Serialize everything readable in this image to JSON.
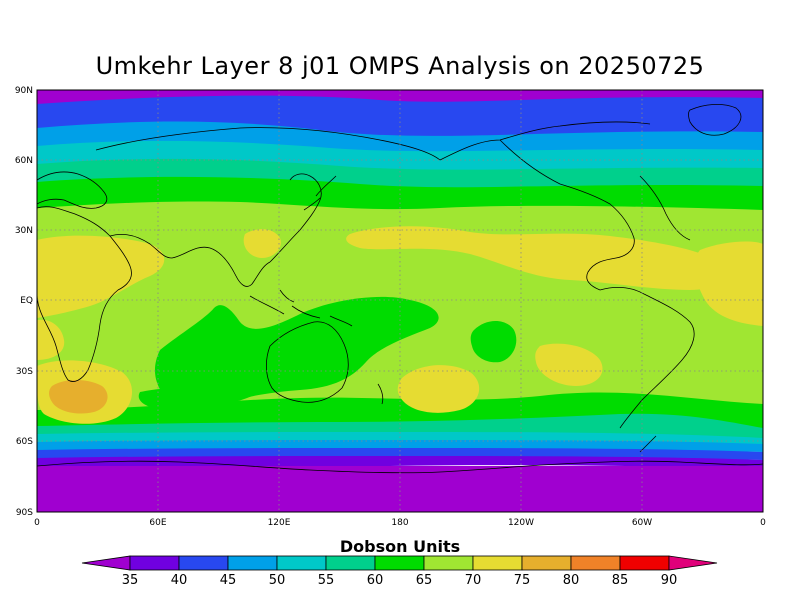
{
  "title": "Umkehr Layer 8 j01 OMPS Analysis on 20250725",
  "map": {
    "lat_ticks": [
      "90N",
      "60N",
      "30N",
      "EQ",
      "30S",
      "60S",
      "90S"
    ],
    "lon_ticks": [
      "0",
      "60E",
      "120E",
      "180",
      "120W",
      "60W",
      "0"
    ],
    "grid": true,
    "grid_style": "dotted"
  },
  "colorbar": {
    "title": "Dobson Units",
    "levels": [
      "35",
      "40",
      "45",
      "50",
      "55",
      "60",
      "65",
      "70",
      "75",
      "80",
      "85",
      "90"
    ],
    "colors": [
      "#a000d0",
      "#7000e0",
      "#2848f0",
      "#00a0e8",
      "#00c8c8",
      "#00d08c",
      "#00dc00",
      "#a0e632",
      "#e6dc32",
      "#e6af2d",
      "#f08228",
      "#f00000",
      "#e0007a"
    ]
  },
  "chart_data": {
    "type": "heatmap",
    "title": "Umkehr Layer 8 j01 OMPS Analysis on 20250725",
    "xlabel": "",
    "ylabel": "",
    "x_range": [
      0,
      360
    ],
    "y_range": [
      -90,
      90
    ],
    "colorbar_label": "Dobson Units",
    "zonal_bands_DU": [
      {
        "lat": [
          75,
          90
        ],
        "value": 37
      },
      {
        "lat": [
          67,
          75
        ],
        "value": 42
      },
      {
        "lat": [
          62,
          67
        ],
        "value": 48
      },
      {
        "lat": [
          57,
          62
        ],
        "value": 54
      },
      {
        "lat": [
          50,
          57
        ],
        "value": 60
      },
      {
        "lat": [
          35,
          50
        ],
        "value": 65
      },
      {
        "lat": [
          -30,
          35
        ],
        "value": 70
      },
      {
        "lat": [
          -48,
          -30
        ],
        "value": 68
      },
      {
        "lat": [
          -53,
          -48
        ],
        "value": 62
      },
      {
        "lat": [
          -57,
          -53
        ],
        "value": 56
      },
      {
        "lat": [
          -61,
          -57
        ],
        "value": 50
      },
      {
        "lat": [
          -64,
          -61
        ],
        "value": 45
      },
      {
        "lat": [
          -67,
          -64
        ],
        "value": 40
      },
      {
        "lat": [
          -90,
          -67
        ],
        "value": 36
      }
    ],
    "features": [
      {
        "lon": 20,
        "lat": -40,
        "value": 78
      },
      {
        "lon": 20,
        "lat": 10,
        "value": 72
      },
      {
        "lon": 150,
        "lat": -20,
        "value": 64
      },
      {
        "lon": 190,
        "lat": -15,
        "value": 64
      },
      {
        "lon": 200,
        "lat": -35,
        "value": 72
      },
      {
        "lon": 240,
        "lat": 20,
        "value": 72
      },
      {
        "lon": 350,
        "lat": -10,
        "value": 72
      }
    ]
  }
}
